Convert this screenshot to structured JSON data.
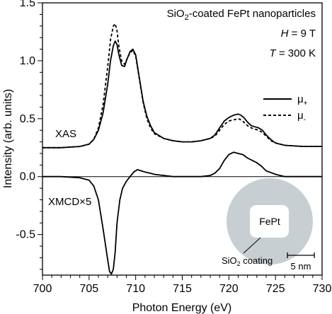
{
  "chart_data": {
    "type": "line",
    "title": {
      "pre": "SiO",
      "sub": "2",
      "post": "-coated FePt nanoparticles"
    },
    "conditions": [
      {
        "var": "H",
        "rest": " = 9 T"
      },
      {
        "var": "T",
        "rest": " = 300 K"
      }
    ],
    "xlabel": "Photon Energy (eV)",
    "ylabel": "Intensity (arb. units)",
    "xlim": [
      700,
      730
    ],
    "ylim": [
      -0.85,
      1.5
    ],
    "xticks": [
      700,
      705,
      710,
      715,
      720,
      725,
      730
    ],
    "yticks": [
      -0.5,
      0.0,
      0.5,
      1.0,
      1.5
    ],
    "ytick_labels": [
      "-0.5",
      "0.0",
      "0.5",
      "1.0",
      "1.5"
    ],
    "zero_line": 0.0,
    "legend_position": "right",
    "legend": [
      {
        "base": "μ",
        "sub": "+",
        "style": "solid"
      },
      {
        "base": "μ",
        "sub": "-",
        "style": "dashed"
      }
    ],
    "annotations": {
      "xas": "XAS",
      "xmcd": "XMCD×5",
      "core": "FePt",
      "coating": {
        "pre": "SiO",
        "sub": "2",
        "post": " coating"
      },
      "scalebar": "5 nm"
    },
    "colors": {
      "line": "#000000",
      "shell": "#c7cfd3",
      "core": "#ffffff"
    },
    "series": [
      {
        "name": "μ+",
        "style": "solid",
        "x": [
          700,
          702,
          704,
          705,
          705.5,
          706,
          706.5,
          707,
          707.3,
          707.6,
          707.8,
          708.0,
          708.2,
          708.5,
          708.8,
          709.1,
          709.4,
          709.7,
          710.0,
          710.4,
          710.8,
          711.2,
          711.6,
          712,
          713,
          714,
          715,
          716,
          717,
          718,
          718.5,
          719,
          719.5,
          720,
          720.5,
          721,
          721.3,
          721.6,
          722,
          722.4,
          722.8,
          723.2,
          723.6,
          724,
          724.5,
          725,
          726,
          728,
          730
        ],
        "values": [
          0.25,
          0.25,
          0.26,
          0.28,
          0.32,
          0.4,
          0.55,
          0.8,
          1.0,
          1.13,
          1.17,
          1.14,
          1.05,
          0.96,
          0.95,
          1.02,
          1.08,
          1.1,
          1.05,
          0.85,
          0.65,
          0.52,
          0.44,
          0.38,
          0.33,
          0.31,
          0.3,
          0.3,
          0.31,
          0.33,
          0.36,
          0.42,
          0.48,
          0.51,
          0.53,
          0.54,
          0.53,
          0.51,
          0.47,
          0.44,
          0.43,
          0.42,
          0.4,
          0.36,
          0.32,
          0.29,
          0.27,
          0.26,
          0.26
        ]
      },
      {
        "name": "μ-",
        "style": "dashed",
        "x": [
          700,
          702,
          704,
          705,
          705.5,
          706,
          706.5,
          707,
          707.3,
          707.6,
          707.8,
          708.0,
          708.2,
          708.5,
          708.8,
          709.1,
          709.4,
          709.7,
          710.0,
          710.4,
          710.8,
          711.2,
          711.6,
          712,
          713,
          714,
          715,
          716,
          717,
          718,
          718.5,
          719,
          719.5,
          720,
          720.5,
          721,
          721.3,
          721.6,
          722,
          722.4,
          722.8,
          723.2,
          723.6,
          724,
          724.5,
          725,
          726,
          728,
          730
        ],
        "values": [
          0.25,
          0.25,
          0.26,
          0.28,
          0.32,
          0.42,
          0.62,
          0.95,
          1.18,
          1.3,
          1.32,
          1.26,
          1.12,
          1.0,
          0.97,
          1.02,
          1.07,
          1.09,
          1.04,
          0.84,
          0.64,
          0.5,
          0.42,
          0.37,
          0.33,
          0.31,
          0.3,
          0.3,
          0.31,
          0.33,
          0.35,
          0.4,
          0.45,
          0.48,
          0.49,
          0.5,
          0.49,
          0.47,
          0.44,
          0.42,
          0.41,
          0.4,
          0.38,
          0.35,
          0.31,
          0.29,
          0.27,
          0.26,
          0.26
        ]
      },
      {
        "name": "XMCD×5",
        "style": "solid",
        "x": [
          700,
          702,
          704,
          705,
          705.5,
          706,
          706.5,
          707,
          707.2,
          707.4,
          707.6,
          707.8,
          708.0,
          708.3,
          708.6,
          709.0,
          709.4,
          709.8,
          710.2,
          710.6,
          711.0,
          711.5,
          712,
          713,
          714,
          715,
          716,
          717,
          718,
          718.5,
          719,
          719.5,
          720,
          720.5,
          721,
          721.5,
          722,
          722.5,
          723,
          723.5,
          724,
          725,
          726,
          728,
          730
        ],
        "values": [
          0.0,
          0.0,
          -0.01,
          -0.03,
          -0.08,
          -0.2,
          -0.45,
          -0.72,
          -0.82,
          -0.84,
          -0.8,
          -0.65,
          -0.4,
          -0.2,
          -0.1,
          -0.04,
          0.0,
          0.04,
          0.06,
          0.05,
          0.04,
          0.03,
          0.02,
          0.01,
          0.0,
          0.0,
          0.0,
          0.0,
          0.01,
          0.03,
          0.07,
          0.14,
          0.19,
          0.21,
          0.2,
          0.19,
          0.16,
          0.14,
          0.12,
          0.09,
          0.05,
          0.02,
          0.0,
          0.0,
          0.0
        ]
      }
    ]
  }
}
